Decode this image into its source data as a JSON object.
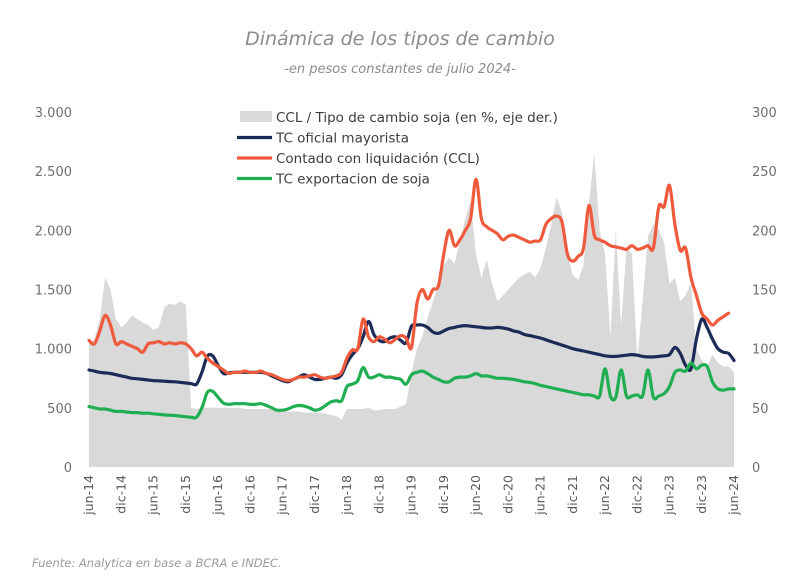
{
  "chart_data": {
    "type": "line",
    "title": "Dinámica de los tipos de cambio",
    "subtitle": "-en pesos constantes de julio 2024-",
    "source": "Fuente: Analytica en base a BCRA e INDEC.",
    "xlabel": "",
    "ylabel": "",
    "ylim": [
      0,
      3000
    ],
    "y2lim": [
      0,
      300
    ],
    "yticks": [
      "0",
      "500",
      "1.000",
      "1.500",
      "2.000",
      "2.500",
      "3.000"
    ],
    "y2ticks": [
      "0",
      "50",
      "100",
      "150",
      "200",
      "250",
      "300"
    ],
    "x_start": "jun-14",
    "x_end": "jun-24",
    "x_frequency": "monthly",
    "xtick_labels": [
      "jun-14",
      "dic-14",
      "jun-15",
      "dic-15",
      "jun-16",
      "dic-16",
      "jun-17",
      "dic-17",
      "jun-18",
      "dic-18",
      "jun-19",
      "dic-19",
      "jun-20",
      "dic-20",
      "jun-21",
      "dic-21",
      "jun-22",
      "dic-22",
      "jun-23",
      "dic-23",
      "jun-24"
    ],
    "grid": false,
    "legend_position": "top-center",
    "series": [
      {
        "name": "CCL / Tipo de cambio soja (en %, eje der.)",
        "type": "area",
        "axis": "right",
        "color": "#d9d9d9",
        "values": [
          105,
          108,
          125,
          160,
          150,
          125,
          118,
          122,
          128,
          125,
          122,
          120,
          116,
          118,
          135,
          138,
          137,
          140,
          137,
          50,
          49,
          50,
          50,
          50,
          50,
          50,
          50,
          50,
          50,
          49,
          49,
          49,
          49,
          49,
          49,
          48,
          48,
          47,
          47,
          47,
          46,
          46,
          46,
          46,
          45,
          44,
          43,
          40,
          49,
          49,
          49,
          49,
          50,
          48,
          48,
          49,
          49,
          49,
          51,
          53,
          80,
          100,
          110,
          126,
          140,
          155,
          170,
          177,
          172,
          190,
          210,
          225,
          180,
          160,
          175,
          155,
          140,
          145,
          150,
          155,
          160,
          163,
          165,
          160,
          168,
          185,
          205,
          228,
          215,
          180,
          162,
          158,
          170,
          222,
          265,
          200,
          180,
          110,
          200,
          120,
          185,
          180,
          90,
          140,
          195,
          205,
          200,
          190,
          155,
          160,
          140,
          145,
          155,
          100,
          90,
          85,
          95,
          88,
          85,
          85,
          80
        ],
        "values_precision": "approximate monthly read-off"
      },
      {
        "name": "TC oficial mayorista",
        "axis": "left",
        "color": "#1b2a57",
        "values": [
          820,
          810,
          800,
          795,
          790,
          780,
          770,
          760,
          750,
          745,
          740,
          735,
          730,
          728,
          725,
          722,
          720,
          715,
          710,
          705,
          700,
          800,
          935,
          940,
          860,
          790,
          795,
          800,
          800,
          800,
          800,
          800,
          800,
          790,
          770,
          750,
          730,
          720,
          740,
          760,
          780,
          760,
          740,
          740,
          750,
          760,
          750,
          780,
          880,
          950,
          1000,
          1100,
          1230,
          1120,
          1070,
          1060,
          1090,
          1100,
          1070,
          1050,
          1190,
          1200,
          1200,
          1180,
          1140,
          1130,
          1150,
          1170,
          1180,
          1190,
          1195,
          1190,
          1185,
          1180,
          1175,
          1175,
          1180,
          1175,
          1165,
          1150,
          1140,
          1120,
          1110,
          1100,
          1090,
          1075,
          1060,
          1045,
          1030,
          1015,
          1000,
          990,
          980,
          970,
          960,
          950,
          940,
          935,
          935,
          940,
          945,
          950,
          945,
          935,
          930,
          930,
          935,
          940,
          950,
          1010,
          960,
          860,
          830,
          1080,
          1250,
          1180,
          1080,
          1000,
          970,
          960,
          900
        ],
        "values_precision": "approximate monthly read-off"
      },
      {
        "name": "Contado con liquidación (CCL)",
        "axis": "left",
        "color": "#ef5a3c",
        "values": [
          1070,
          1040,
          1150,
          1280,
          1200,
          1040,
          1060,
          1040,
          1020,
          1000,
          970,
          1040,
          1050,
          1060,
          1040,
          1050,
          1040,
          1050,
          1040,
          1000,
          940,
          970,
          920,
          880,
          850,
          820,
          790,
          800,
          800,
          810,
          800,
          800,
          810,
          790,
          780,
          760,
          740,
          730,
          740,
          760,
          760,
          770,
          780,
          760,
          750,
          760,
          770,
          800,
          920,
          990,
          1000,
          1250,
          1100,
          1060,
          1100,
          1080,
          1050,
          1080,
          1110,
          1090,
          1010,
          1380,
          1500,
          1420,
          1500,
          1530,
          1800,
          2000,
          1870,
          1920,
          2000,
          2100,
          2430,
          2100,
          2030,
          2000,
          1970,
          1920,
          1950,
          1960,
          1940,
          1920,
          1900,
          1910,
          1920,
          2050,
          2100,
          2120,
          2070,
          1800,
          1740,
          1780,
          1850,
          2210,
          1960,
          1920,
          1900,
          1870,
          1860,
          1850,
          1840,
          1870,
          1840,
          1850,
          1870,
          1850,
          2200,
          2200,
          2380,
          2050,
          1830,
          1850,
          1600,
          1450,
          1300,
          1250,
          1200,
          1240,
          1270,
          1300
        ],
        "values_precision": "approximate monthly read-off"
      },
      {
        "name": "TC exportacion de soja",
        "axis": "left",
        "color": "#1fae52",
        "values": [
          510,
          500,
          490,
          490,
          480,
          470,
          470,
          465,
          460,
          460,
          455,
          455,
          450,
          445,
          440,
          438,
          435,
          430,
          425,
          420,
          420,
          500,
          630,
          640,
          590,
          540,
          530,
          535,
          535,
          535,
          530,
          530,
          535,
          520,
          500,
          480,
          480,
          490,
          510,
          520,
          515,
          500,
          480,
          490,
          520,
          550,
          560,
          560,
          680,
          700,
          730,
          840,
          760,
          760,
          780,
          760,
          760,
          750,
          740,
          700,
          780,
          800,
          810,
          790,
          760,
          740,
          720,
          720,
          750,
          760,
          760,
          770,
          790,
          770,
          770,
          760,
          750,
          750,
          745,
          740,
          730,
          720,
          715,
          705,
          690,
          680,
          670,
          660,
          650,
          640,
          630,
          620,
          610,
          610,
          600,
          600,
          830,
          600,
          590,
          820,
          600,
          600,
          610,
          600,
          820,
          590,
          600,
          620,
          680,
          800,
          820,
          810,
          880,
          830,
          860,
          850,
          720,
          660,
          650,
          660,
          660
        ],
        "values_precision": "approximate monthly read-off"
      }
    ]
  }
}
